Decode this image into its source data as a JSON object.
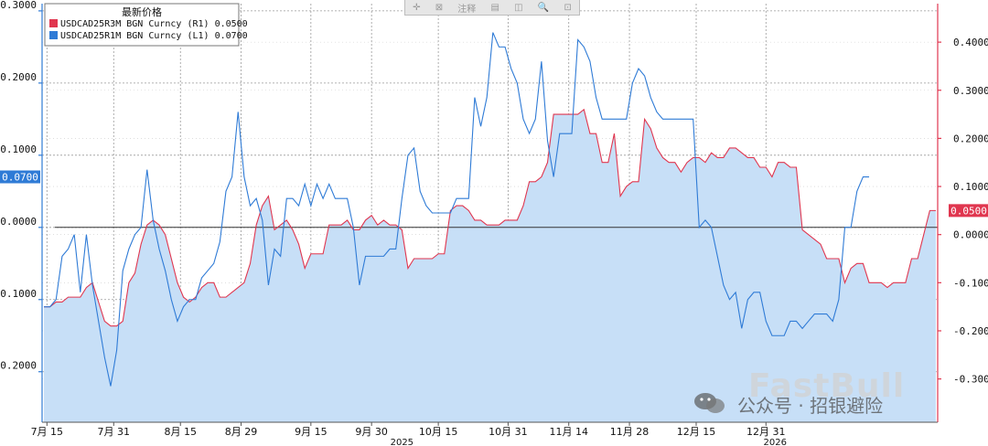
{
  "chart_data": {
    "type": "area",
    "title": "最新价格",
    "xlabel": "",
    "ylabel": "",
    "x_tick_labels": [
      "7月 15",
      "7月 31",
      "8月 15",
      "8月 29",
      "9月 15",
      "9月 30",
      "10月 15",
      "10月 31",
      "11月 14",
      "11月 28",
      "12月 15",
      "12月 31"
    ],
    "x_tick_positions": [
      0.5,
      11.5,
      22.5,
      32.5,
      44,
      54,
      65,
      76.5,
      86.5,
      96.5,
      107.5,
      119
    ],
    "x_year_labels": [
      {
        "label": "2025",
        "at": 59
      },
      {
        "label": "2026",
        "at": 120.5
      }
    ],
    "y_left": {
      "lim": [
        -0.27,
        0.31
      ],
      "ticks": [
        "0.3000",
        "0.2000",
        "0.1000",
        "0.0000",
        "-0.1000",
        "-0.2000"
      ]
    },
    "y_right": {
      "lim": [
        -0.39,
        0.48
      ],
      "ticks": [
        "0.4000",
        "0.3000",
        "0.2000",
        "0.1000",
        "0.0000",
        "-0.1000",
        "-0.2000",
        "-0.3000"
      ]
    },
    "zero_line": 0,
    "grid": true,
    "legend_position": "top-left",
    "series": [
      {
        "name": "USDCAD25R3M BGN Curncy",
        "legend_label": "USDCAD25R3M BGN Curncy (R1) 0.0500",
        "axis": "right",
        "color": "#e0364f",
        "last_label": "0.0500",
        "values": [
          -0.15,
          -0.15,
          -0.14,
          -0.14,
          -0.13,
          -0.13,
          -0.13,
          -0.11,
          -0.1,
          -0.14,
          -0.18,
          -0.19,
          -0.19,
          -0.18,
          -0.1,
          -0.08,
          -0.02,
          0.02,
          0.03,
          0.02,
          0.0,
          -0.05,
          -0.1,
          -0.13,
          -0.14,
          -0.13,
          -0.11,
          -0.1,
          -0.1,
          -0.13,
          -0.13,
          -0.12,
          -0.11,
          -0.1,
          -0.06,
          0.02,
          0.06,
          0.08,
          0.01,
          0.02,
          0.03,
          0.01,
          -0.02,
          -0.07,
          -0.04,
          -0.04,
          -0.04,
          0.02,
          0.02,
          0.02,
          0.03,
          0.01,
          0.01,
          0.03,
          0.04,
          0.02,
          0.03,
          0.02,
          0.02,
          0.01,
          -0.07,
          -0.05,
          -0.05,
          -0.05,
          -0.05,
          -0.04,
          -0.04,
          0.05,
          0.06,
          0.06,
          0.05,
          0.03,
          0.03,
          0.02,
          0.02,
          0.02,
          0.03,
          0.03,
          0.03,
          0.06,
          0.11,
          0.11,
          0.12,
          0.15,
          0.25,
          0.25,
          0.25,
          0.25,
          0.25,
          0.26,
          0.21,
          0.21,
          0.15,
          0.15,
          0.21,
          0.08,
          0.1,
          0.11,
          0.11,
          0.24,
          0.22,
          0.18,
          0.16,
          0.15,
          0.15,
          0.13,
          0.15,
          0.16,
          0.16,
          0.15,
          0.17,
          0.16,
          0.16,
          0.18,
          0.18,
          0.17,
          0.16,
          0.16,
          0.14,
          0.14,
          0.12,
          0.15,
          0.15,
          0.14,
          0.14,
          0.01,
          0.0,
          -0.01,
          -0.02,
          -0.05,
          -0.05,
          -0.05,
          -0.1,
          -0.07,
          -0.06,
          -0.06,
          -0.1,
          -0.1,
          -0.1,
          -0.11,
          -0.1,
          -0.1,
          -0.1,
          -0.05,
          -0.05,
          0.0,
          0.05,
          0.05
        ],
        "sampled": true
      },
      {
        "name": "USDCAD25R1M BGN Curncy",
        "legend_label": "USDCAD25R1M BGN Curncy (L1) 0.0700",
        "axis": "left",
        "color": "#2f7bd6",
        "last_label": "0.0700",
        "values": [
          -0.11,
          -0.11,
          -0.1,
          -0.04,
          -0.03,
          -0.01,
          -0.09,
          -0.01,
          -0.08,
          -0.13,
          -0.18,
          -0.22,
          -0.17,
          -0.06,
          -0.03,
          -0.01,
          0.0,
          0.08,
          0.01,
          -0.03,
          -0.06,
          -0.1,
          -0.13,
          -0.11,
          -0.1,
          -0.1,
          -0.07,
          -0.06,
          -0.05,
          -0.02,
          0.05,
          0.07,
          0.16,
          0.07,
          0.03,
          0.04,
          0.01,
          -0.08,
          -0.03,
          -0.04,
          0.04,
          0.04,
          0.03,
          0.06,
          0.03,
          0.06,
          0.04,
          0.06,
          0.04,
          0.04,
          0.04,
          0.0,
          -0.08,
          -0.04,
          -0.04,
          -0.04,
          -0.04,
          -0.03,
          -0.03,
          0.04,
          0.1,
          0.11,
          0.05,
          0.03,
          0.02,
          0.02,
          0.02,
          0.02,
          0.04,
          0.04,
          0.04,
          0.18,
          0.14,
          0.18,
          0.27,
          0.25,
          0.25,
          0.22,
          0.2,
          0.15,
          0.13,
          0.15,
          0.23,
          0.12,
          0.07,
          0.13,
          0.13,
          0.13,
          0.26,
          0.25,
          0.23,
          0.18,
          0.15,
          0.15,
          0.15,
          0.15,
          0.15,
          0.2,
          0.22,
          0.21,
          0.18,
          0.16,
          0.15,
          0.15,
          0.15,
          0.15,
          0.15,
          0.15,
          0.0,
          0.01,
          0.0,
          -0.04,
          -0.08,
          -0.1,
          -0.09,
          -0.14,
          -0.1,
          -0.09,
          -0.09,
          -0.13,
          -0.15,
          -0.15,
          -0.15,
          -0.13,
          -0.13,
          -0.14,
          -0.13,
          -0.12,
          -0.12,
          -0.12,
          -0.13,
          -0.1,
          0.0,
          0.0,
          0.05,
          0.07,
          0.07
        ]
      }
    ]
  },
  "toolbar": {
    "items": [
      "✛",
      "⊠",
      "注释",
      "▤",
      "◫",
      "🔍",
      "⊡"
    ]
  },
  "watermark": {
    "logo": "FastBull",
    "text": "公众号 · 招银避险"
  }
}
